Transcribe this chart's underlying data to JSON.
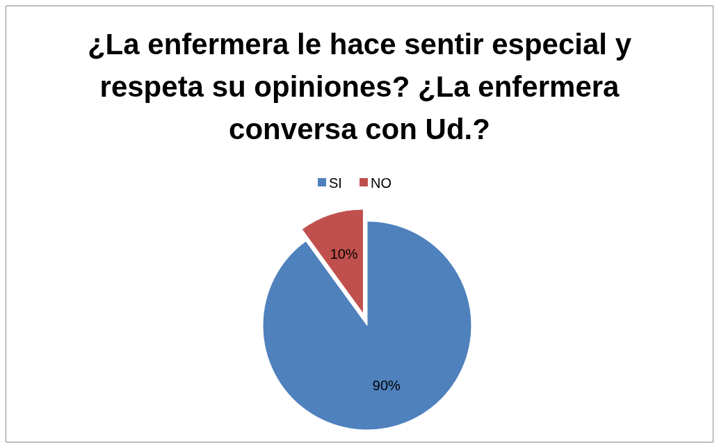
{
  "chart_data": {
    "type": "pie",
    "title": "¿La enfermera le hace sentir especial y respeta su opiniones? ¿La enfermera conversa con Ud.?",
    "categories": [
      "SI",
      "NO"
    ],
    "values": [
      90,
      10
    ],
    "colors": [
      "#4f81bd",
      "#c0504d"
    ],
    "value_labels": [
      "90%",
      "10%"
    ],
    "legend": "top"
  }
}
